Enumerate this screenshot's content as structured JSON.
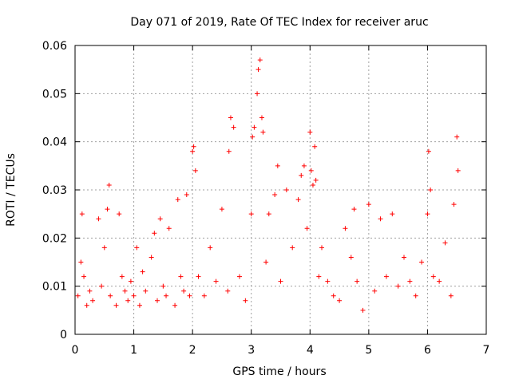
{
  "chart_data": {
    "type": "scatter",
    "title": "Day 071 of 2019, Rate Of TEC Index for receiver aruc",
    "xlabel": "GPS time / hours",
    "ylabel": "ROTI / TECUs",
    "xlim": [
      0,
      7
    ],
    "ylim": [
      0,
      0.06
    ],
    "xticks": [
      "0",
      "1",
      "2",
      "3",
      "4",
      "5",
      "6",
      "7"
    ],
    "yticks": [
      "0",
      "0.01",
      "0.02",
      "0.03",
      "0.04",
      "0.05",
      "0.06"
    ],
    "grid": true,
    "marker": "+",
    "color": "#ff0000",
    "series": [
      {
        "name": "ROTI",
        "x": [
          0.05,
          0.1,
          0.12,
          0.15,
          0.2,
          0.25,
          0.3,
          0.4,
          0.45,
          0.5,
          0.55,
          0.58,
          0.6,
          0.7,
          0.75,
          0.8,
          0.85,
          0.9,
          0.95,
          1.0,
          1.05,
          1.1,
          1.15,
          1.2,
          1.3,
          1.35,
          1.4,
          1.45,
          1.5,
          1.55,
          1.6,
          1.7,
          1.75,
          1.8,
          1.85,
          1.9,
          1.95,
          2.0,
          2.02,
          2.05,
          2.1,
          2.2,
          2.3,
          2.4,
          2.5,
          2.6,
          2.62,
          2.65,
          2.7,
          2.8,
          2.9,
          3.0,
          3.02,
          3.05,
          3.1,
          3.12,
          3.15,
          3.18,
          3.2,
          3.25,
          3.3,
          3.4,
          3.45,
          3.5,
          3.6,
          3.7,
          3.8,
          3.85,
          3.9,
          3.95,
          4.0,
          4.02,
          4.05,
          4.08,
          4.1,
          4.15,
          4.2,
          4.3,
          4.4,
          4.5,
          4.6,
          4.7,
          4.75,
          4.8,
          4.9,
          5.0,
          5.1,
          5.2,
          5.3,
          5.4,
          5.5,
          5.6,
          5.7,
          5.8,
          5.9,
          6.0,
          6.02,
          6.05,
          6.1,
          6.2,
          6.3,
          6.4,
          6.45,
          6.5,
          6.52
        ],
        "y": [
          0.008,
          0.015,
          0.025,
          0.012,
          0.006,
          0.009,
          0.007,
          0.024,
          0.01,
          0.018,
          0.026,
          0.031,
          0.008,
          0.006,
          0.025,
          0.012,
          0.009,
          0.007,
          0.011,
          0.008,
          0.018,
          0.006,
          0.013,
          0.009,
          0.016,
          0.021,
          0.007,
          0.024,
          0.01,
          0.008,
          0.022,
          0.006,
          0.028,
          0.012,
          0.009,
          0.029,
          0.008,
          0.038,
          0.039,
          0.034,
          0.012,
          0.008,
          0.018,
          0.011,
          0.026,
          0.009,
          0.038,
          0.045,
          0.043,
          0.012,
          0.007,
          0.025,
          0.041,
          0.043,
          0.05,
          0.055,
          0.057,
          0.045,
          0.042,
          0.015,
          0.025,
          0.029,
          0.035,
          0.011,
          0.03,
          0.018,
          0.028,
          0.033,
          0.035,
          0.022,
          0.042,
          0.034,
          0.031,
          0.039,
          0.032,
          0.012,
          0.018,
          0.011,
          0.008,
          0.007,
          0.022,
          0.016,
          0.026,
          0.011,
          0.005,
          0.027,
          0.009,
          0.024,
          0.012,
          0.025,
          0.01,
          0.016,
          0.011,
          0.008,
          0.015,
          0.025,
          0.038,
          0.03,
          0.012,
          0.011,
          0.019,
          0.008,
          0.027,
          0.041,
          0.034
        ]
      }
    ]
  }
}
